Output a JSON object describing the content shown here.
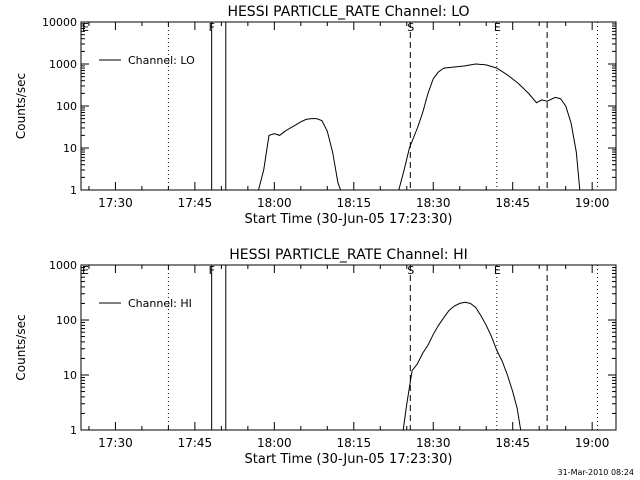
{
  "colors": {
    "background": "#ffffff",
    "foreground": "#000000"
  },
  "footer_stamp": "31-Mar-2010 08:24",
  "chart_data": [
    {
      "type": "line",
      "title": "HESSI PARTICLE_RATE Channel: LO",
      "xlabel": "Start Time (30-Jun-05 17:23:30)",
      "ylabel": "Counts/sec",
      "y_scale": "log",
      "xlim": [
        "17:23:30",
        "19:04:30"
      ],
      "ylim": [
        1,
        10000
      ],
      "x_ticks": [
        "17:30",
        "17:45",
        "18:00",
        "18:15",
        "18:30",
        "18:45",
        "19:00"
      ],
      "y_ticks": [
        "1",
        "10",
        "100",
        "1000",
        "10000"
      ],
      "legend": "top-left",
      "grid": false,
      "markers": [
        {
          "time": "17:40:00",
          "style": "dotted",
          "label": ""
        },
        {
          "time": "17:48:10",
          "style": "solid",
          "label": "F"
        },
        {
          "time": "17:50:50",
          "style": "solid",
          "label": ""
        },
        {
          "time": "18:25:40",
          "style": "dashed",
          "label": "S"
        },
        {
          "time": "18:42:00",
          "style": "dotted",
          "label": "E"
        },
        {
          "time": "18:51:30",
          "style": "dashed",
          "label": ""
        },
        {
          "time": "19:01:00",
          "style": "dotted",
          "label": ""
        }
      ],
      "corner_label": "E",
      "series": [
        {
          "name": "Channel: LO",
          "points": [
            [
              "17:57:00",
              1
            ],
            [
              "17:58:00",
              3
            ],
            [
              "17:59:00",
              20
            ],
            [
              "18:00:00",
              22
            ],
            [
              "18:01:00",
              20
            ],
            [
              "18:02:00",
              25
            ],
            [
              "18:03:00",
              30
            ],
            [
              "18:04:00",
              35
            ],
            [
              "18:05:00",
              42
            ],
            [
              "18:06:00",
              48
            ],
            [
              "18:07:00",
              50
            ],
            [
              "18:08:00",
              50
            ],
            [
              "18:09:00",
              45
            ],
            [
              "18:10:00",
              25
            ],
            [
              "18:11:00",
              8
            ],
            [
              "18:12:00",
              1.5
            ],
            [
              "18:12:30",
              1
            ],
            [
              "18:23:30",
              1
            ],
            [
              "18:24:30",
              3
            ],
            [
              "18:25:30",
              10
            ],
            [
              "18:27:00",
              30
            ],
            [
              "18:28:00",
              70
            ],
            [
              "18:29:00",
              200
            ],
            [
              "18:30:00",
              450
            ],
            [
              "18:31:00",
              650
            ],
            [
              "18:32:00",
              800
            ],
            [
              "18:34:00",
              850
            ],
            [
              "18:36:00",
              900
            ],
            [
              "18:38:00",
              1000
            ],
            [
              "18:40:00",
              950
            ],
            [
              "18:42:00",
              800
            ],
            [
              "18:44:00",
              550
            ],
            [
              "18:46:00",
              350
            ],
            [
              "18:48:00",
              200
            ],
            [
              "18:49:30",
              120
            ],
            [
              "18:50:30",
              140
            ],
            [
              "18:51:30",
              130
            ],
            [
              "18:53:00",
              160
            ],
            [
              "18:54:00",
              150
            ],
            [
              "18:55:00",
              100
            ],
            [
              "18:56:00",
              40
            ],
            [
              "18:57:00",
              8
            ],
            [
              "18:57:40",
              1
            ]
          ]
        }
      ]
    },
    {
      "type": "line",
      "title": "HESSI PARTICLE_RATE Channel: HI",
      "xlabel": "Start Time (30-Jun-05 17:23:30)",
      "ylabel": "Counts/sec",
      "y_scale": "log",
      "xlim": [
        "17:23:30",
        "19:04:30"
      ],
      "ylim": [
        1,
        1000
      ],
      "x_ticks": [
        "17:30",
        "17:45",
        "18:00",
        "18:15",
        "18:30",
        "18:45",
        "19:00"
      ],
      "y_ticks": [
        "1",
        "10",
        "100",
        "1000"
      ],
      "legend": "top-left",
      "grid": false,
      "markers": [
        {
          "time": "17:40:00",
          "style": "dotted",
          "label": ""
        },
        {
          "time": "17:48:10",
          "style": "solid",
          "label": "F"
        },
        {
          "time": "17:50:50",
          "style": "solid",
          "label": ""
        },
        {
          "time": "18:25:40",
          "style": "dashed",
          "label": "S"
        },
        {
          "time": "18:42:00",
          "style": "dotted",
          "label": "E"
        },
        {
          "time": "18:51:30",
          "style": "dashed",
          "label": ""
        },
        {
          "time": "19:01:00",
          "style": "dotted",
          "label": ""
        }
      ],
      "corner_label": "E",
      "series": [
        {
          "name": "Channel: HI",
          "points": [
            [
              "18:24:20",
              1
            ],
            [
              "18:25:00",
              3
            ],
            [
              "18:26:00",
              12
            ],
            [
              "18:27:00",
              16
            ],
            [
              "18:28:00",
              25
            ],
            [
              "18:29:00",
              35
            ],
            [
              "18:30:00",
              55
            ],
            [
              "18:31:00",
              80
            ],
            [
              "18:32:00",
              110
            ],
            [
              "18:33:00",
              150
            ],
            [
              "18:34:00",
              180
            ],
            [
              "18:35:00",
              200
            ],
            [
              "18:36:00",
              210
            ],
            [
              "18:37:00",
              200
            ],
            [
              "18:38:00",
              170
            ],
            [
              "18:39:00",
              120
            ],
            [
              "18:40:00",
              80
            ],
            [
              "18:41:00",
              50
            ],
            [
              "18:42:00",
              28
            ],
            [
              "18:43:00",
              18
            ],
            [
              "18:44:00",
              10
            ],
            [
              "18:45:00",
              5
            ],
            [
              "18:45:50",
              2.5
            ],
            [
              "18:46:30",
              1
            ]
          ]
        }
      ]
    }
  ]
}
